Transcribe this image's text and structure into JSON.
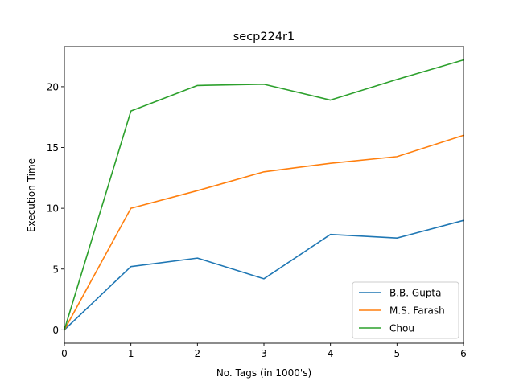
{
  "chart_data": {
    "type": "line",
    "title": "secp224r1",
    "xlabel": "No. Tags (in 1000's)",
    "ylabel": "Execution Time",
    "x": [
      0,
      1,
      2,
      3,
      4,
      5,
      6
    ],
    "xlim": [
      0,
      6
    ],
    "ylim": [
      -1.1,
      23.3
    ],
    "xticks": [
      0,
      1,
      2,
      3,
      4,
      5,
      6
    ],
    "yticks": [
      0,
      5,
      10,
      15,
      20
    ],
    "grid": false,
    "legend_position": "lower right",
    "series": [
      {
        "name": "B.B. Gupta",
        "color": "#1f77b4",
        "values": [
          0,
          5.2,
          5.9,
          4.2,
          7.85,
          7.55,
          9.0
        ]
      },
      {
        "name": "M.S. Farash",
        "color": "#ff7f0e",
        "values": [
          0,
          10.0,
          11.45,
          13.0,
          13.7,
          14.25,
          16.0
        ]
      },
      {
        "name": "Chou",
        "color": "#2ca02c",
        "values": [
          0,
          18.0,
          20.1,
          20.2,
          18.9,
          20.6,
          22.2
        ]
      }
    ]
  }
}
